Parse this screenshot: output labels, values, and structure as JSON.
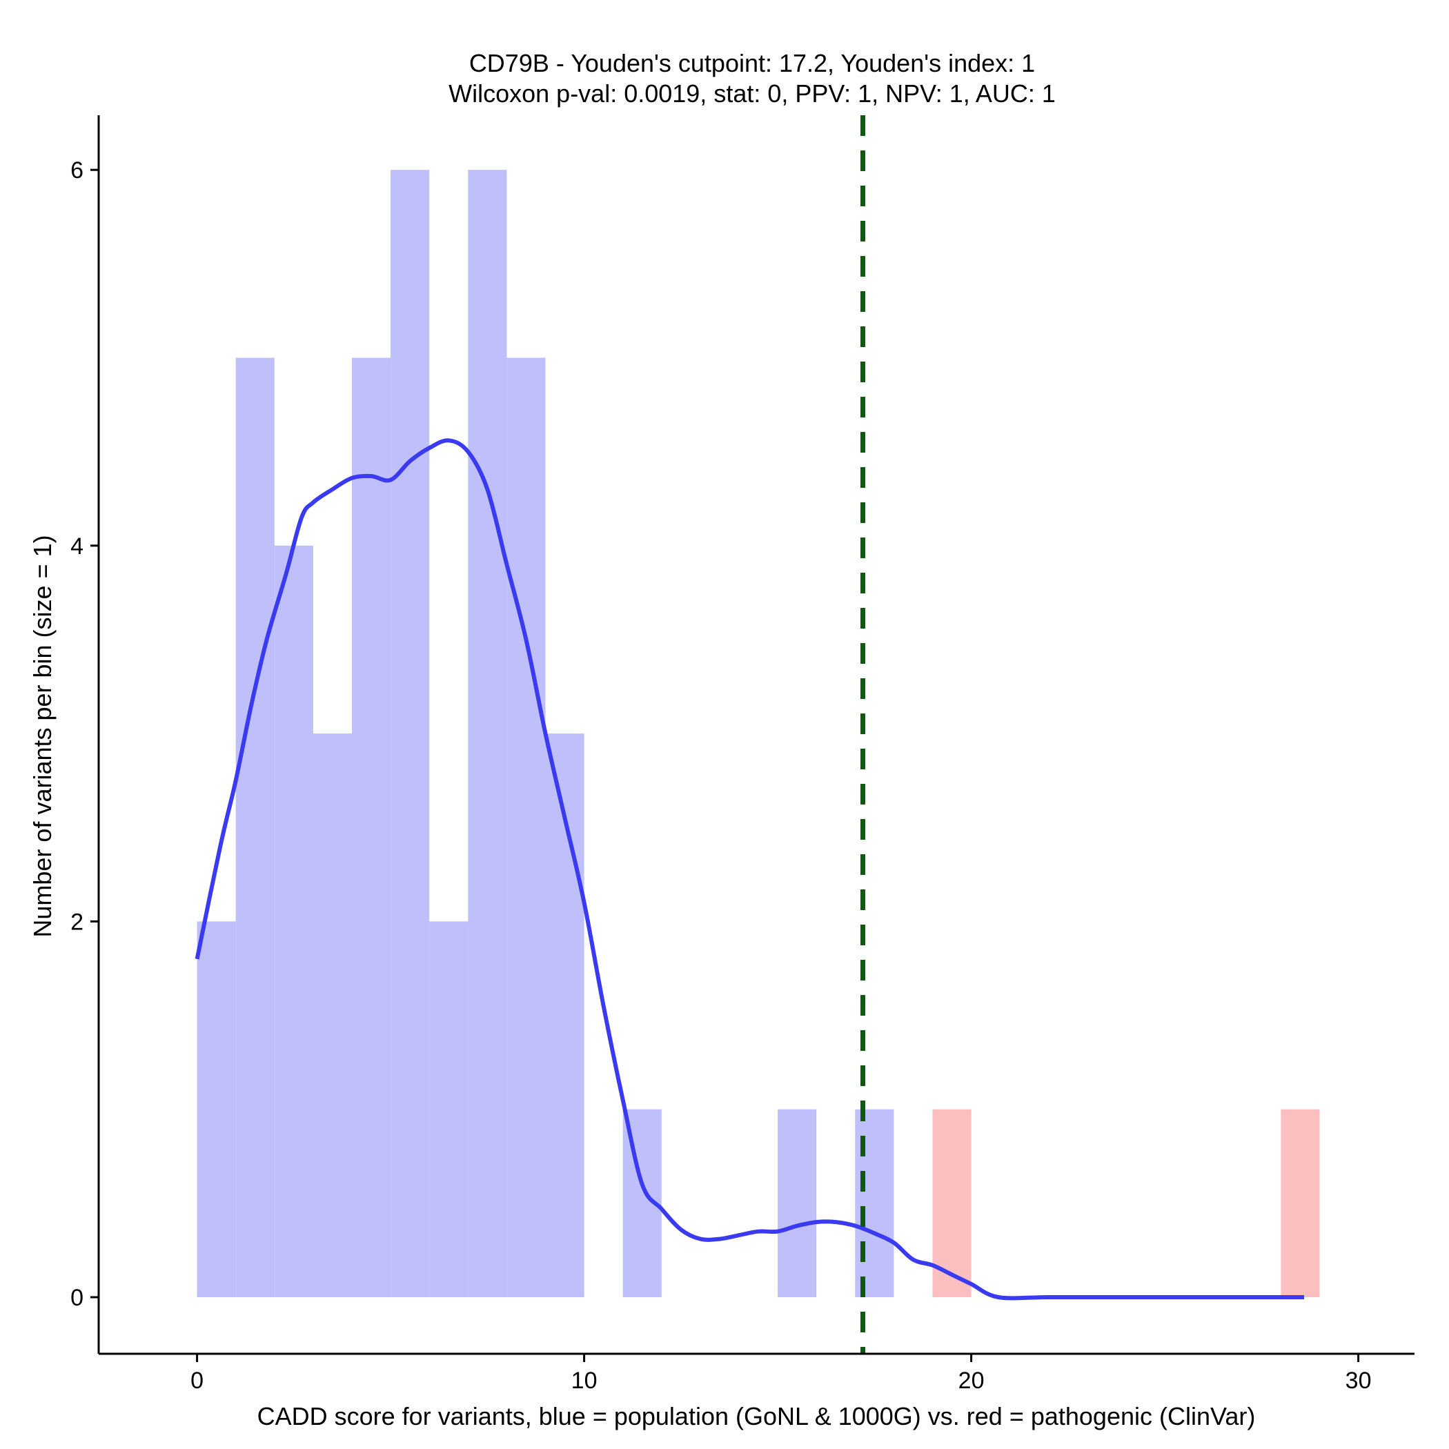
{
  "chart_data": {
    "type": "bar",
    "title": "CD79B - Youden's cutpoint: 17.2, Youden's index: 1",
    "subtitle": "Wilcoxon p-val: 0.0019, stat: 0, PPV: 1, NPV: 1, AUC: 1",
    "xlabel": "CADD score for variants, blue = population (GoNL & 1000G) vs. red = pathogenic (ClinVar)",
    "ylabel": "Number of variants per bin (size = 1)",
    "xlim": [
      -2.6,
      31.5
    ],
    "ylim": [
      -0.3,
      6.3
    ],
    "xticks": [
      0,
      10,
      20,
      30
    ],
    "yticks": [
      0,
      2,
      4,
      6
    ],
    "bin_size": 1,
    "cutpoint": 17.2,
    "series": [
      {
        "name": "population (GoNL & 1000G)",
        "color": "#bfbffc",
        "bins": [
          {
            "x0": 0,
            "count": 2
          },
          {
            "x0": 1,
            "count": 5
          },
          {
            "x0": 2,
            "count": 4
          },
          {
            "x0": 3,
            "count": 3
          },
          {
            "x0": 4,
            "count": 5
          },
          {
            "x0": 5,
            "count": 6
          },
          {
            "x0": 6,
            "count": 2
          },
          {
            "x0": 7,
            "count": 6
          },
          {
            "x0": 8,
            "count": 5
          },
          {
            "x0": 9,
            "count": 3
          },
          {
            "x0": 11,
            "count": 1
          },
          {
            "x0": 15,
            "count": 1
          },
          {
            "x0": 17,
            "count": 1
          }
        ]
      },
      {
        "name": "pathogenic (ClinVar)",
        "color": "#fcbfc0",
        "bins": [
          {
            "x0": 19,
            "count": 1
          },
          {
            "x0": 28,
            "count": 1
          }
        ]
      }
    ],
    "density": {
      "name": "population density",
      "color": "#3a3af0",
      "points": [
        [
          0,
          1.8
        ],
        [
          0.6,
          2.4
        ],
        [
          1,
          2.75
        ],
        [
          1.4,
          3.15
        ],
        [
          1.8,
          3.5
        ],
        [
          2.3,
          3.85
        ],
        [
          2.7,
          4.15
        ],
        [
          3,
          4.23
        ],
        [
          3.5,
          4.3
        ],
        [
          4,
          4.36
        ],
        [
          4.5,
          4.37
        ],
        [
          5,
          4.35
        ],
        [
          5.5,
          4.45
        ],
        [
          6,
          4.52
        ],
        [
          6.5,
          4.56
        ],
        [
          7,
          4.5
        ],
        [
          7.5,
          4.3
        ],
        [
          8,
          3.9
        ],
        [
          8.5,
          3.5
        ],
        [
          9,
          3.0
        ],
        [
          9.5,
          2.55
        ],
        [
          10,
          2.1
        ],
        [
          10.5,
          1.55
        ],
        [
          11,
          1.05
        ],
        [
          11.5,
          0.6
        ],
        [
          12,
          0.47
        ],
        [
          12.5,
          0.36
        ],
        [
          13,
          0.31
        ],
        [
          13.5,
          0.31
        ],
        [
          14,
          0.33
        ],
        [
          14.5,
          0.35
        ],
        [
          15,
          0.35
        ],
        [
          15.5,
          0.38
        ],
        [
          16,
          0.4
        ],
        [
          16.5,
          0.4
        ],
        [
          17,
          0.38
        ],
        [
          17.5,
          0.34
        ],
        [
          18,
          0.29
        ],
        [
          18.5,
          0.2
        ],
        [
          19,
          0.17
        ],
        [
          19.5,
          0.12
        ],
        [
          20,
          0.07
        ],
        [
          20.7,
          0.0
        ],
        [
          22,
          0.0
        ],
        [
          24,
          0.0
        ],
        [
          26,
          0.0
        ],
        [
          28.6,
          0.0
        ]
      ]
    },
    "cutpoint_color": "#0f5a0f"
  }
}
